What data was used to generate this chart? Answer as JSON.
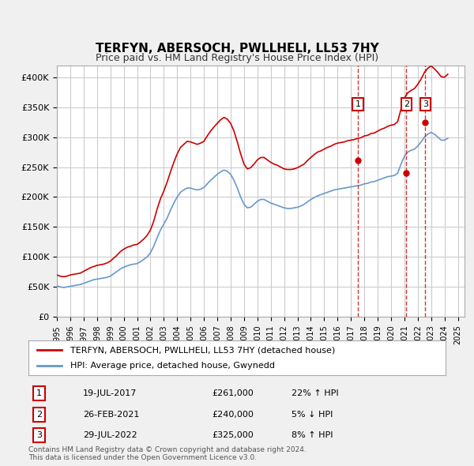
{
  "title": "TERFYN, ABERSOCH, PWLLHELI, LL53 7HY",
  "subtitle": "Price paid vs. HM Land Registry's House Price Index (HPI)",
  "ylabel": "",
  "ylim": [
    0,
    420000
  ],
  "yticks": [
    0,
    50000,
    100000,
    150000,
    200000,
    250000,
    300000,
    350000,
    400000
  ],
  "ytick_labels": [
    "£0",
    "£50K",
    "£100K",
    "£150K",
    "£200K",
    "£250K",
    "£300K",
    "£350K",
    "£400K"
  ],
  "legend_line1": "TERFYN, ABERSOCH, PWLLHELI, LL53 7HY (detached house)",
  "legend_line2": "HPI: Average price, detached house, Gwynedd",
  "footer1": "Contains HM Land Registry data © Crown copyright and database right 2024.",
  "footer2": "This data is licensed under the Open Government Licence v3.0.",
  "transaction_labels": [
    {
      "num": "1",
      "date": "19-JUL-2017",
      "price": "£261,000",
      "hpi": "22% ↑ HPI"
    },
    {
      "num": "2",
      "date": "26-FEB-2021",
      "price": "£240,000",
      "hpi": "5% ↓ HPI"
    },
    {
      "num": "3",
      "date": "29-JUL-2022",
      "price": "£325,000",
      "hpi": "8% ↑ HPI"
    }
  ],
  "transaction_dates": [
    2017.54,
    2021.15,
    2022.57
  ],
  "transaction_prices": [
    261000,
    240000,
    325000
  ],
  "red_color": "#cc0000",
  "blue_color": "#6699cc",
  "background_color": "#f0f0f0",
  "plot_bg_color": "#ffffff",
  "hpi_data": {
    "years": [
      1995.0,
      1995.25,
      1995.5,
      1995.75,
      1996.0,
      1996.25,
      1996.5,
      1996.75,
      1997.0,
      1997.25,
      1997.5,
      1997.75,
      1998.0,
      1998.25,
      1998.5,
      1998.75,
      1999.0,
      1999.25,
      1999.5,
      1999.75,
      2000.0,
      2000.25,
      2000.5,
      2000.75,
      2001.0,
      2001.25,
      2001.5,
      2001.75,
      2002.0,
      2002.25,
      2002.5,
      2002.75,
      2003.0,
      2003.25,
      2003.5,
      2003.75,
      2004.0,
      2004.25,
      2004.5,
      2004.75,
      2005.0,
      2005.25,
      2005.5,
      2005.75,
      2006.0,
      2006.25,
      2006.5,
      2006.75,
      2007.0,
      2007.25,
      2007.5,
      2007.75,
      2008.0,
      2008.25,
      2008.5,
      2008.75,
      2009.0,
      2009.25,
      2009.5,
      2009.75,
      2010.0,
      2010.25,
      2010.5,
      2010.75,
      2011.0,
      2011.25,
      2011.5,
      2011.75,
      2012.0,
      2012.25,
      2012.5,
      2012.75,
      2013.0,
      2013.25,
      2013.5,
      2013.75,
      2014.0,
      2014.25,
      2014.5,
      2014.75,
      2015.0,
      2015.25,
      2015.5,
      2015.75,
      2016.0,
      2016.25,
      2016.5,
      2016.75,
      2017.0,
      2017.25,
      2017.5,
      2017.75,
      2018.0,
      2018.25,
      2018.5,
      2018.75,
      2019.0,
      2019.25,
      2019.5,
      2019.75,
      2020.0,
      2020.25,
      2020.5,
      2020.75,
      2021.0,
      2021.25,
      2021.5,
      2021.75,
      2022.0,
      2022.25,
      2022.5,
      2022.75,
      2023.0,
      2023.25,
      2023.5,
      2023.75,
      2024.0,
      2024.25
    ],
    "values": [
      52000,
      50000,
      49000,
      50000,
      51000,
      52000,
      53000,
      54000,
      56000,
      58000,
      60000,
      62000,
      63000,
      64000,
      65000,
      66000,
      68000,
      72000,
      76000,
      80000,
      83000,
      85000,
      87000,
      88000,
      89000,
      92000,
      96000,
      100000,
      107000,
      118000,
      132000,
      145000,
      155000,
      165000,
      178000,
      190000,
      200000,
      208000,
      212000,
      215000,
      215000,
      213000,
      212000,
      213000,
      216000,
      222000,
      228000,
      233000,
      238000,
      242000,
      245000,
      243000,
      238000,
      228000,
      215000,
      200000,
      188000,
      182000,
      183000,
      188000,
      193000,
      196000,
      196000,
      193000,
      190000,
      188000,
      186000,
      184000,
      182000,
      181000,
      181000,
      182000,
      183000,
      185000,
      188000,
      192000,
      196000,
      199000,
      202000,
      204000,
      206000,
      208000,
      210000,
      212000,
      213000,
      214000,
      215000,
      216000,
      217000,
      218000,
      219000,
      220000,
      222000,
      223000,
      225000,
      226000,
      228000,
      230000,
      232000,
      234000,
      235000,
      236000,
      240000,
      255000,
      268000,
      275000,
      278000,
      280000,
      285000,
      292000,
      300000,
      305000,
      308000,
      305000,
      300000,
      295000,
      295000,
      298000
    ]
  },
  "price_data": {
    "years": [
      1995.0,
      1995.25,
      1995.5,
      1995.75,
      1996.0,
      1996.25,
      1996.5,
      1996.75,
      1997.0,
      1997.25,
      1997.5,
      1997.75,
      1998.0,
      1998.25,
      1998.5,
      1998.75,
      1999.0,
      1999.25,
      1999.5,
      1999.75,
      2000.0,
      2000.25,
      2000.5,
      2000.75,
      2001.0,
      2001.25,
      2001.5,
      2001.75,
      2002.0,
      2002.25,
      2002.5,
      2002.75,
      2003.0,
      2003.25,
      2003.5,
      2003.75,
      2004.0,
      2004.25,
      2004.5,
      2004.75,
      2005.0,
      2005.25,
      2005.5,
      2005.75,
      2006.0,
      2006.25,
      2006.5,
      2006.75,
      2007.0,
      2007.25,
      2007.5,
      2007.75,
      2008.0,
      2008.25,
      2008.5,
      2008.75,
      2009.0,
      2009.25,
      2009.5,
      2009.75,
      2010.0,
      2010.25,
      2010.5,
      2010.75,
      2011.0,
      2011.25,
      2011.5,
      2011.75,
      2012.0,
      2012.25,
      2012.5,
      2012.75,
      2013.0,
      2013.25,
      2013.5,
      2013.75,
      2014.0,
      2014.25,
      2014.5,
      2014.75,
      2015.0,
      2015.25,
      2015.5,
      2015.75,
      2016.0,
      2016.25,
      2016.5,
      2016.75,
      2017.0,
      2017.25,
      2017.5,
      2017.75,
      2018.0,
      2018.25,
      2018.5,
      2018.75,
      2019.0,
      2019.25,
      2019.5,
      2019.75,
      2020.0,
      2020.25,
      2020.5,
      2020.75,
      2021.0,
      2021.25,
      2021.5,
      2021.75,
      2022.0,
      2022.25,
      2022.5,
      2022.75,
      2023.0,
      2023.25,
      2023.5,
      2023.75,
      2024.0,
      2024.25
    ],
    "values": [
      70000,
      68000,
      67000,
      68000,
      70000,
      71000,
      72000,
      73000,
      76000,
      79000,
      82000,
      84000,
      86000,
      87000,
      88000,
      90000,
      93000,
      98000,
      103000,
      109000,
      113000,
      116000,
      118000,
      120000,
      121000,
      125000,
      130000,
      136000,
      145000,
      160000,
      180000,
      197000,
      210000,
      225000,
      242000,
      258000,
      272000,
      283000,
      288000,
      293000,
      292000,
      290000,
      288000,
      290000,
      293000,
      302000,
      310000,
      317000,
      323000,
      329000,
      333000,
      330000,
      323000,
      310000,
      292000,
      272000,
      255000,
      247000,
      249000,
      255000,
      262000,
      266000,
      266000,
      262000,
      258000,
      255000,
      253000,
      250000,
      247000,
      246000,
      246000,
      247000,
      249000,
      252000,
      255000,
      261000,
      266000,
      271000,
      275000,
      277000,
      280000,
      283000,
      285000,
      288000,
      290000,
      291000,
      292000,
      294000,
      295000,
      296000,
      298000,
      299000,
      302000,
      303000,
      306000,
      307000,
      310000,
      313000,
      315000,
      318000,
      320000,
      321000,
      326000,
      347000,
      365000,
      374000,
      378000,
      381000,
      388000,
      397000,
      408000,
      415000,
      419000,
      414000,
      408000,
      401000,
      400000,
      405000
    ]
  }
}
